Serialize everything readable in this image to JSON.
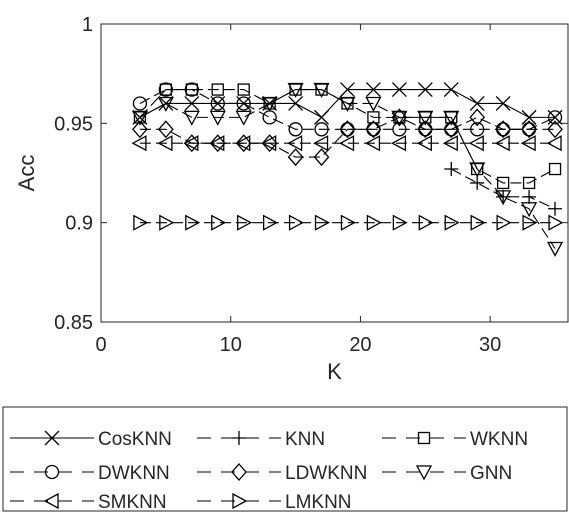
{
  "chart_data": {
    "type": "line",
    "title": "",
    "xlabel": "K",
    "ylabel": "Acc",
    "xlim": [
      0,
      36
    ],
    "ylim": [
      0.85,
      1
    ],
    "xticks": [
      0,
      10,
      20,
      30
    ],
    "xtick_labels": [
      "0",
      "10",
      "20",
      "30"
    ],
    "yticks": [
      0.85,
      0.9,
      0.95,
      1
    ],
    "ytick_labels": [
      "0.85",
      "0.9",
      "0.95",
      "1"
    ],
    "grid": false,
    "legend_position": "below",
    "x": [
      3,
      5,
      7,
      9,
      11,
      13,
      15,
      17,
      19,
      21,
      23,
      25,
      27,
      29,
      31,
      33,
      35
    ],
    "series": [
      {
        "name": "CosKNN",
        "marker": "x",
        "line": "solid",
        "values": [
          0.953,
          0.96,
          0.96,
          0.96,
          0.96,
          0.96,
          0.96,
          0.953,
          0.967,
          0.967,
          0.967,
          0.967,
          0.967,
          0.96,
          0.96,
          0.953,
          0.953
        ]
      },
      {
        "name": "KNN",
        "marker": "plus",
        "line": "dashed",
        "values": [
          null,
          null,
          null,
          null,
          null,
          null,
          null,
          null,
          null,
          null,
          null,
          null,
          0.927,
          0.92,
          0.913,
          0.913,
          0.907
        ]
      },
      {
        "name": "WKNN",
        "marker": "square",
        "line": "dashed",
        "values": [
          0.953,
          0.967,
          0.967,
          0.967,
          0.967,
          0.96,
          0.967,
          0.967,
          0.96,
          0.953,
          0.953,
          0.953,
          0.953,
          0.927,
          0.92,
          0.92,
          0.927
        ]
      },
      {
        "name": "DWKNN",
        "marker": "circle",
        "line": "dashed",
        "values": [
          0.96,
          0.967,
          0.967,
          0.96,
          0.96,
          0.953,
          0.947,
          0.947,
          0.947,
          0.947,
          0.947,
          0.947,
          0.947,
          0.947,
          0.947,
          0.947,
          0.953
        ]
      },
      {
        "name": "LDWKNN",
        "marker": "diamond",
        "line": "dashed",
        "values": [
          0.947,
          0.947,
          0.94,
          0.94,
          0.94,
          0.94,
          0.933,
          0.933,
          0.947,
          0.947,
          0.953,
          0.947,
          0.947,
          0.953,
          0.947,
          0.947,
          0.947
        ]
      },
      {
        "name": "GNN",
        "marker": "triangle-down",
        "line": "dashed",
        "values": [
          0.953,
          0.96,
          0.953,
          0.953,
          0.953,
          0.96,
          0.967,
          0.967,
          0.96,
          0.96,
          0.953,
          0.953,
          0.953,
          0.927,
          0.913,
          0.907,
          0.887
        ]
      },
      {
        "name": "SMKNN",
        "marker": "triangle-left",
        "line": "dashed",
        "values": [
          0.94,
          0.94,
          0.94,
          0.94,
          0.94,
          0.94,
          0.94,
          0.94,
          0.94,
          0.94,
          0.94,
          0.94,
          0.94,
          0.94,
          0.94,
          0.94,
          0.94
        ]
      },
      {
        "name": "LMKNN",
        "marker": "triangle-right",
        "line": "dashed",
        "values": [
          0.9,
          0.9,
          0.9,
          0.9,
          0.9,
          0.9,
          0.9,
          0.9,
          0.9,
          0.9,
          0.9,
          0.9,
          0.9,
          0.9,
          0.9,
          0.9,
          0.9
        ]
      }
    ]
  }
}
